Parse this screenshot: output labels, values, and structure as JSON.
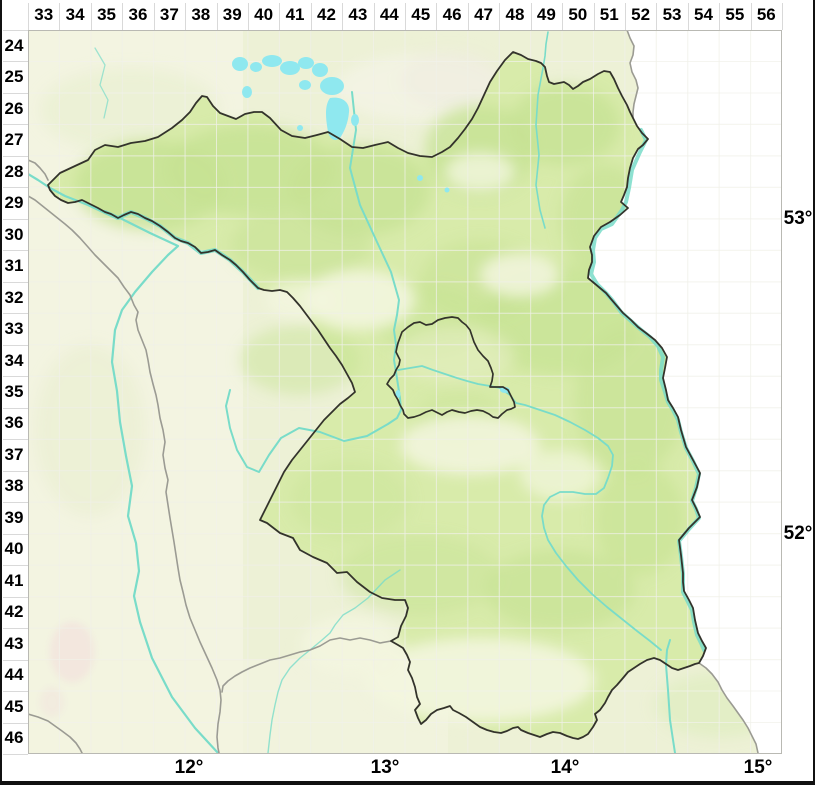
{
  "map_grid": {
    "top_labels": [
      "33",
      "34",
      "35",
      "36",
      "37",
      "38",
      "39",
      "40",
      "41",
      "42",
      "43",
      "44",
      "45",
      "46",
      "47",
      "48",
      "49",
      "50",
      "51",
      "52",
      "53",
      "54",
      "55",
      "56"
    ],
    "left_labels": [
      "24",
      "25",
      "26",
      "27",
      "28",
      "29",
      "30",
      "31",
      "32",
      "33",
      "34",
      "35",
      "36",
      "37",
      "38",
      "39",
      "40",
      "41",
      "42",
      "43",
      "44",
      "45",
      "46"
    ],
    "right_labels": [
      "53°",
      "52°"
    ],
    "bottom_labels": [
      "12°",
      "13°",
      "14°",
      "15°"
    ]
  },
  "colors": {
    "map_base": "#edf1d6",
    "state_fill": "#d8ebaa",
    "forest_green": "#c6e293",
    "pale_patch": "#f3f6df",
    "outside_area": "#ffffff",
    "river": "#79dcc9",
    "lake": "#8fe8ef",
    "state_border": "#33332b",
    "other_border": "#9b9b93",
    "grid_line": "#dadbc8",
    "label_color": "#000000"
  }
}
